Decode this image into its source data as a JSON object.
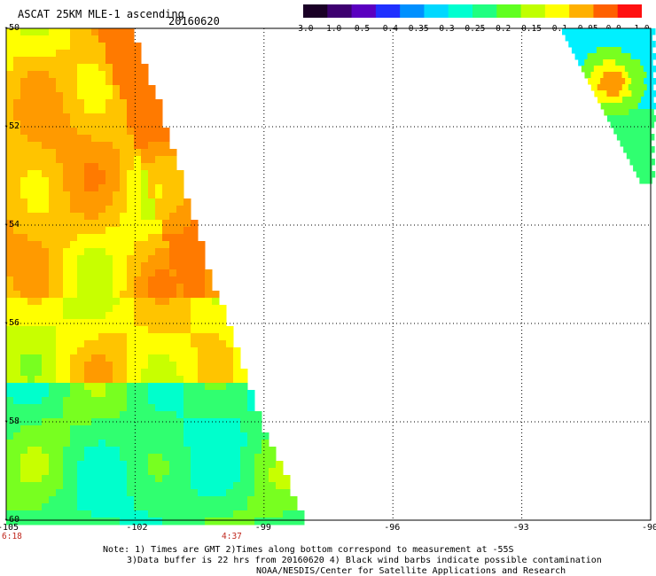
{
  "header": {
    "title": "ASCAT 25KM MLE-1 ascending",
    "date": "20160620"
  },
  "colorbar": {
    "labels": [
      "-3.0",
      "-1.0",
      "-0.5",
      "-0.4",
      "-0.35",
      "-0.3",
      "-0.25",
      "-0.2",
      "-0.15",
      "-0.1",
      "-0.05",
      "0.0",
      "1.0"
    ],
    "colors": [
      "#1a0026",
      "#3d0070",
      "#5a00c0",
      "#2030ff",
      "#0090ff",
      "#00d8ff",
      "#00ffd0",
      "#20ff80",
      "#60ff20",
      "#c0ff00",
      "#ffff00",
      "#ffb000",
      "#ff6000",
      "#ff1010"
    ]
  },
  "map": {
    "lon_ticks": [
      "-105",
      "-102",
      "-99",
      "-96",
      "-93",
      "-90"
    ],
    "lat_ticks": [
      "-50",
      "-52",
      "-54",
      "-56",
      "-58",
      "-60"
    ],
    "lon_range": [
      -105,
      -90
    ],
    "lat_range": [
      -50,
      -60
    ]
  },
  "times": {
    "left": "6:18",
    "mid": "4:37"
  },
  "notes": {
    "line1": "Note: 1) Times are GMT 2)Times along bottom correspond to measurement at -55S",
    "line2": "3)Data buffer is 22 hrs from 20160620 4) Black wind barbs indicate possible contamination",
    "line3": "NOAA/NESDIS/Center for Satellite Applications and Research"
  }
}
